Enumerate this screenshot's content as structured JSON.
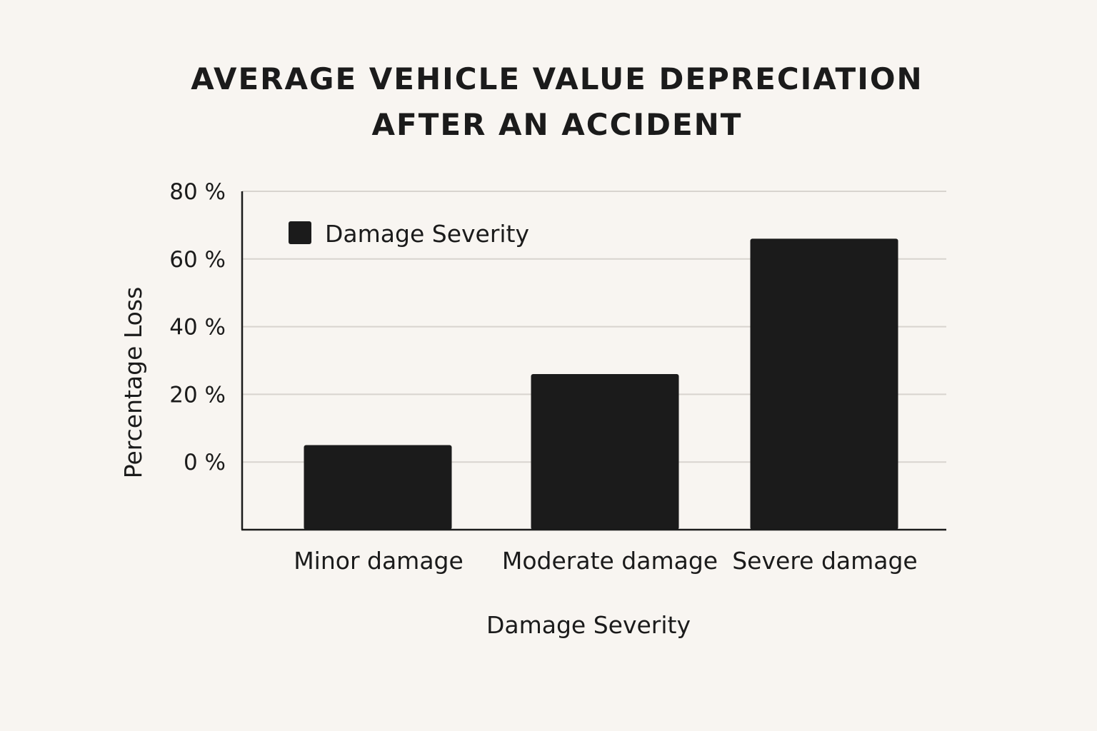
{
  "chart_data": {
    "type": "bar",
    "title_lines": [
      "AVERAGE VEHICLE VALUE DEPRECIATION",
      "AFTER AN ACCIDENT"
    ],
    "xlabel": "Damage Severity",
    "ylabel": "Percentage Loss",
    "categories": [
      "Minor damage",
      "Moderate damage",
      "Severe damage"
    ],
    "series": [
      {
        "name": "Damage Severity",
        "values": [
          5,
          26,
          66
        ]
      }
    ],
    "yticks": [
      0,
      20,
      40,
      60,
      80
    ],
    "ytick_labels": [
      "0 %",
      "20 %",
      "40 %",
      "60 %",
      "80 %"
    ],
    "ylim": [
      -20,
      80
    ],
    "grid": true,
    "legend": "top-left",
    "colors": {
      "bar": "#1b1b1b",
      "background": "#f8f5f1",
      "grid": "#d8d4cf"
    }
  }
}
